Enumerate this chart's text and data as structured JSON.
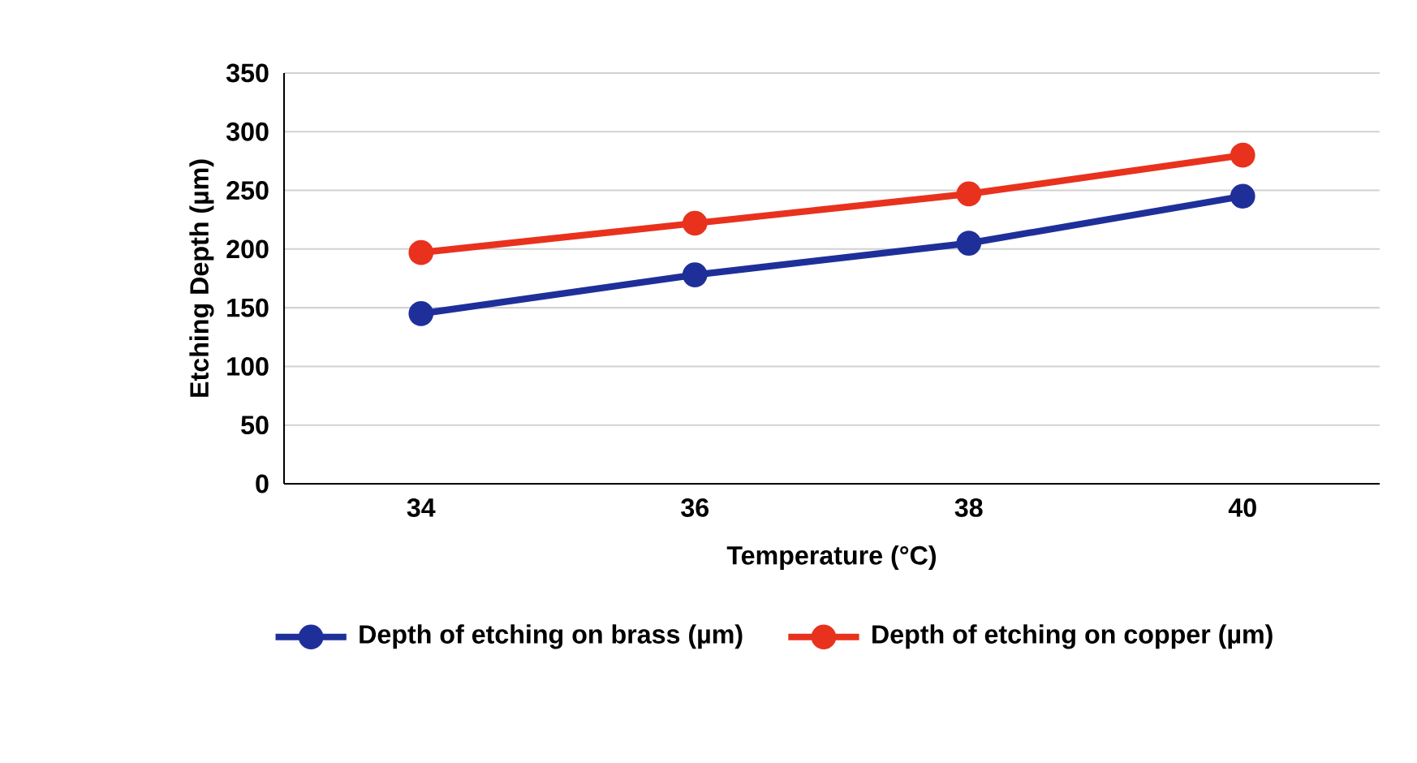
{
  "chart_data": {
    "type": "line",
    "xlabel": "Temperature (°C)",
    "ylabel": "Etching Depth (µm)",
    "categories": [
      "34",
      "36",
      "38",
      "40"
    ],
    "series": [
      {
        "name": "Depth of etching on brass (µm)",
        "color": "#1f2f9a",
        "values": [
          145,
          178,
          205,
          245
        ]
      },
      {
        "name": "Depth of etching on copper (µm)",
        "color": "#e8321e",
        "values": [
          197,
          222,
          247,
          280
        ]
      }
    ],
    "ylim": [
      0,
      350
    ],
    "yticks": [
      0,
      50,
      100,
      150,
      200,
      250,
      300,
      350
    ],
    "grid": "y",
    "legend": "bottom",
    "marker": "circle",
    "line_style": "solid"
  }
}
